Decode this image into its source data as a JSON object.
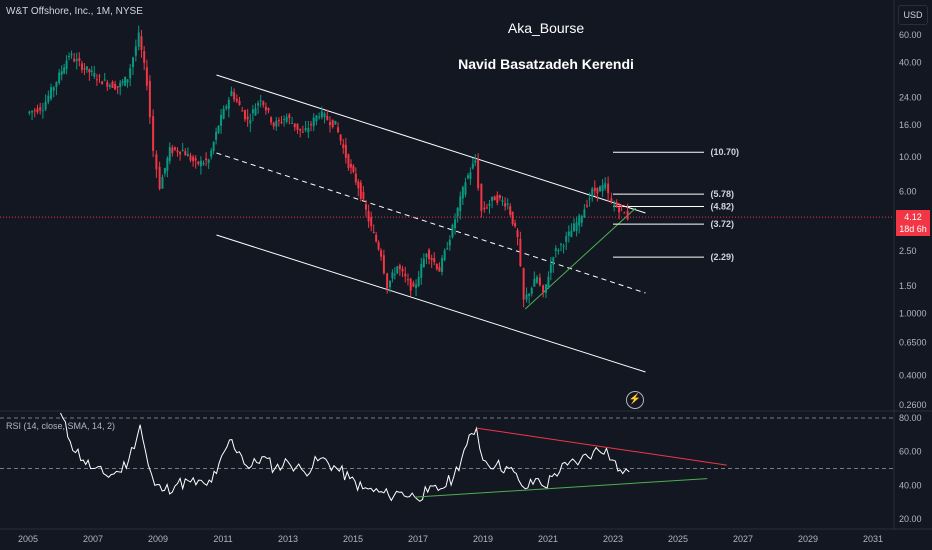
{
  "header": {
    "symbol": "W&T Offshore, Inc., 1M, NYSE",
    "currency": "USD"
  },
  "watermark": {
    "line1": "Aka_Bourse",
    "line2": "Navid Basatzadeh Kerendi"
  },
  "last_price": {
    "value": "4.12",
    "countdown": "18d 6h"
  },
  "rsi_header": "RSI (14, close, SMA, 14, 2)",
  "icons": {
    "alert": "lightning-icon"
  },
  "colors": {
    "up": "#089981",
    "down": "#f23645",
    "channel": "#ffffff",
    "support": "#4caf50",
    "rsi_line": "#ffffff",
    "rsi_resistance": "#f23645",
    "rsi_support": "#4caf50",
    "price_line": "#f23645"
  },
  "chart_data": [
    {
      "type": "candlestick",
      "scale": "log",
      "x_axis_ticks": [
        "2005",
        "2007",
        "2009",
        "2011",
        "2013",
        "2015",
        "2017",
        "2019",
        "2021",
        "2023",
        "2025",
        "2027",
        "2029",
        "2031"
      ],
      "y_axis_ticks": [
        "60.00",
        "40.00",
        "24.00",
        "16.00",
        "10.00",
        "6.00",
        "2.50",
        "1.50",
        "1.0000",
        "0.6500",
        "0.4000",
        "0.2600"
      ],
      "y_axis_values": [
        60,
        40,
        24,
        16,
        10,
        6,
        2.5,
        1.5,
        1.0,
        0.65,
        0.4,
        0.26
      ],
      "ylim": [
        0.24,
        75
      ],
      "xlim": [
        2004.5,
        2031.8
      ],
      "price_series": [
        {
          "x": 2005.0,
          "y": 19
        },
        {
          "x": 2005.5,
          "y": 21
        },
        {
          "x": 2006.0,
          "y": 33
        },
        {
          "x": 2006.3,
          "y": 45
        },
        {
          "x": 2006.7,
          "y": 38
        },
        {
          "x": 2007.0,
          "y": 34
        },
        {
          "x": 2007.4,
          "y": 30
        },
        {
          "x": 2007.8,
          "y": 28
        },
        {
          "x": 2008.1,
          "y": 32
        },
        {
          "x": 2008.45,
          "y": 59
        },
        {
          "x": 2008.7,
          "y": 30
        },
        {
          "x": 2008.9,
          "y": 11
        },
        {
          "x": 2009.1,
          "y": 6.5
        },
        {
          "x": 2009.4,
          "y": 11
        },
        {
          "x": 2009.8,
          "y": 11
        },
        {
          "x": 2010.2,
          "y": 9
        },
        {
          "x": 2010.6,
          "y": 9.5
        },
        {
          "x": 2010.9,
          "y": 16
        },
        {
          "x": 2011.3,
          "y": 26
        },
        {
          "x": 2011.8,
          "y": 17
        },
        {
          "x": 2012.2,
          "y": 24
        },
        {
          "x": 2012.6,
          "y": 16
        },
        {
          "x": 2013.0,
          "y": 18
        },
        {
          "x": 2013.5,
          "y": 14
        },
        {
          "x": 2014.0,
          "y": 19
        },
        {
          "x": 2014.5,
          "y": 16
        },
        {
          "x": 2014.9,
          "y": 9
        },
        {
          "x": 2015.2,
          "y": 6.5
        },
        {
          "x": 2015.6,
          "y": 3.5
        },
        {
          "x": 2015.9,
          "y": 2.4
        },
        {
          "x": 2016.1,
          "y": 1.5
        },
        {
          "x": 2016.4,
          "y": 2.0
        },
        {
          "x": 2016.9,
          "y": 1.4
        },
        {
          "x": 2017.3,
          "y": 2.5
        },
        {
          "x": 2017.7,
          "y": 1.9
        },
        {
          "x": 2018.1,
          "y": 3.5
        },
        {
          "x": 2018.5,
          "y": 7
        },
        {
          "x": 2018.8,
          "y": 9.5
        },
        {
          "x": 2019.0,
          "y": 4.5
        },
        {
          "x": 2019.4,
          "y": 5.5
        },
        {
          "x": 2019.8,
          "y": 5
        },
        {
          "x": 2020.1,
          "y": 3
        },
        {
          "x": 2020.3,
          "y": 1.2
        },
        {
          "x": 2020.7,
          "y": 1.7
        },
        {
          "x": 2020.9,
          "y": 1.3
        },
        {
          "x": 2021.2,
          "y": 2.4
        },
        {
          "x": 2021.6,
          "y": 3
        },
        {
          "x": 2022.0,
          "y": 4
        },
        {
          "x": 2022.4,
          "y": 6
        },
        {
          "x": 2022.8,
          "y": 6.5
        },
        {
          "x": 2023.0,
          "y": 5
        },
        {
          "x": 2023.3,
          "y": 4.6
        },
        {
          "x": 2023.5,
          "y": 4.12
        }
      ],
      "fib_levels": [
        {
          "label": "(10.70)",
          "value": 10.7
        },
        {
          "label": "(5.78)",
          "value": 5.78
        },
        {
          "label": "(4.82)",
          "value": 4.82
        },
        {
          "label": "(3.72)",
          "value": 3.72
        },
        {
          "label": "(2.29)",
          "value": 2.29
        }
      ],
      "last_price": 4.12
    },
    {
      "type": "line",
      "name": "RSI",
      "y_axis_ticks": [
        "80.00",
        "60.00",
        "40.00",
        "20.00"
      ],
      "y_axis_values": [
        80,
        60,
        40,
        20
      ],
      "ylim": [
        14,
        84
      ],
      "bands": [
        80,
        50
      ],
      "series": [
        {
          "x": 2006.0,
          "y": 83
        },
        {
          "x": 2006.3,
          "y": 66
        },
        {
          "x": 2006.7,
          "y": 55
        },
        {
          "x": 2007.0,
          "y": 50
        },
        {
          "x": 2007.4,
          "y": 46
        },
        {
          "x": 2007.8,
          "y": 48
        },
        {
          "x": 2008.1,
          "y": 55
        },
        {
          "x": 2008.45,
          "y": 76
        },
        {
          "x": 2008.7,
          "y": 52
        },
        {
          "x": 2008.9,
          "y": 40
        },
        {
          "x": 2009.2,
          "y": 37
        },
        {
          "x": 2009.6,
          "y": 41
        },
        {
          "x": 2010.0,
          "y": 42
        },
        {
          "x": 2010.5,
          "y": 40
        },
        {
          "x": 2010.8,
          "y": 47
        },
        {
          "x": 2011.2,
          "y": 67
        },
        {
          "x": 2011.5,
          "y": 60
        },
        {
          "x": 2011.8,
          "y": 50
        },
        {
          "x": 2012.2,
          "y": 57
        },
        {
          "x": 2012.6,
          "y": 50
        },
        {
          "x": 2013.0,
          "y": 54
        },
        {
          "x": 2013.5,
          "y": 48
        },
        {
          "x": 2014.0,
          "y": 56
        },
        {
          "x": 2014.5,
          "y": 50
        },
        {
          "x": 2014.9,
          "y": 44
        },
        {
          "x": 2015.3,
          "y": 38
        },
        {
          "x": 2015.8,
          "y": 36
        },
        {
          "x": 2016.1,
          "y": 34
        },
        {
          "x": 2016.5,
          "y": 36
        },
        {
          "x": 2016.9,
          "y": 33
        },
        {
          "x": 2017.3,
          "y": 36
        },
        {
          "x": 2017.7,
          "y": 38
        },
        {
          "x": 2018.1,
          "y": 45
        },
        {
          "x": 2018.5,
          "y": 64
        },
        {
          "x": 2018.8,
          "y": 74
        },
        {
          "x": 2019.0,
          "y": 55
        },
        {
          "x": 2019.4,
          "y": 52
        },
        {
          "x": 2019.8,
          "y": 50
        },
        {
          "x": 2020.1,
          "y": 43
        },
        {
          "x": 2020.3,
          "y": 38
        },
        {
          "x": 2020.7,
          "y": 44
        },
        {
          "x": 2020.9,
          "y": 39
        },
        {
          "x": 2021.2,
          "y": 47
        },
        {
          "x": 2021.6,
          "y": 52
        },
        {
          "x": 2022.0,
          "y": 55
        },
        {
          "x": 2022.4,
          "y": 60
        },
        {
          "x": 2022.8,
          "y": 62
        },
        {
          "x": 2023.0,
          "y": 55
        },
        {
          "x": 2023.3,
          "y": 47
        },
        {
          "x": 2023.5,
          "y": 48
        }
      ]
    }
  ]
}
